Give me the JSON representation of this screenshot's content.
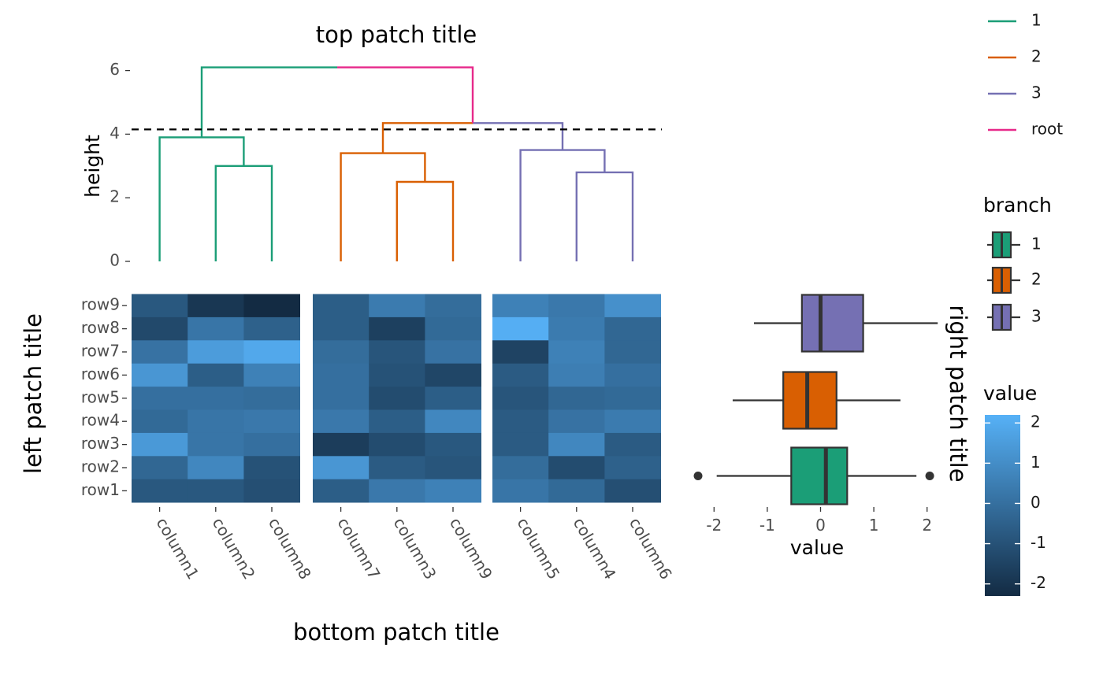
{
  "chart_data": {
    "type": "heatmap",
    "titles": {
      "top": "top patch title",
      "left": "left patch title",
      "bottom": "bottom patch title",
      "right": "right patch title"
    },
    "heatmap": {
      "rows": [
        "row1",
        "row2",
        "row3",
        "row4",
        "row5",
        "row6",
        "row7",
        "row8",
        "row9"
      ],
      "column_groups": [
        [
          "column1",
          "column2",
          "column8"
        ],
        [
          "column7",
          "column3",
          "column9"
        ],
        [
          "column5",
          "column4",
          "column6"
        ]
      ],
      "value_range": [
        -2.3,
        2.2
      ],
      "values_by_row": {
        "row9": [
          -0.8,
          -1.9,
          -2.3,
          -0.6,
          0.4,
          -0.1,
          0.6,
          0.3,
          1.1
        ],
        "row8": [
          -1.3,
          0.2,
          -0.5,
          -0.6,
          -1.6,
          -0.2,
          2.1,
          0.4,
          -0.3
        ],
        "row7": [
          0.1,
          1.5,
          1.9,
          -0.1,
          -0.9,
          0.1,
          -1.5,
          0.6,
          -0.3
        ],
        "row6": [
          1.3,
          -0.6,
          0.6,
          0.0,
          -1.0,
          -1.4,
          -0.7,
          0.5,
          0.0
        ],
        "row5": [
          0.0,
          0.0,
          -0.1,
          0.0,
          -1.2,
          -0.6,
          -0.9,
          -0.3,
          -0.2
        ],
        "row4": [
          -0.2,
          0.2,
          0.3,
          0.3,
          -0.6,
          0.8,
          -0.7,
          0.1,
          0.4
        ],
        "row3": [
          1.4,
          0.2,
          0.0,
          -1.7,
          -1.2,
          -0.8,
          -0.7,
          0.8,
          -0.7
        ],
        "row2": [
          -0.3,
          0.8,
          -1.0,
          1.3,
          -0.7,
          -0.9,
          -0.1,
          -1.2,
          -0.5
        ],
        "row1": [
          -0.8,
          -0.8,
          -1.1,
          -0.6,
          0.3,
          0.6,
          0.2,
          -0.2,
          -1.1
        ]
      }
    },
    "dendrogram": {
      "y_axis_label": "height",
      "y_ticks": [
        0,
        2,
        4,
        6
      ],
      "y_range": [
        0,
        6.1
      ],
      "cut_height": 4.15,
      "leaves": [
        "column1",
        "column2",
        "column8",
        "column7",
        "column3",
        "column9",
        "column5",
        "column4",
        "column6"
      ],
      "merges": [
        {
          "left": "column2",
          "right": "column8",
          "height": 3.0,
          "branch": "1"
        },
        {
          "left": "column1",
          "right": "column2+column8",
          "height": 3.9,
          "branch": "1"
        },
        {
          "left": "column3",
          "right": "column9",
          "height": 2.5,
          "branch": "2"
        },
        {
          "left": "column7",
          "right": "column3+column9",
          "height": 3.4,
          "branch": "2"
        },
        {
          "left": "column4",
          "right": "column6",
          "height": 2.8,
          "branch": "3"
        },
        {
          "left": "column5",
          "right": "column4+column6",
          "height": 3.5,
          "branch": "3"
        },
        {
          "left": "cluster 2",
          "right": "cluster 3",
          "height": 4.35,
          "branch": "2/3"
        },
        {
          "left": "cluster 1",
          "right": "cluster 2+3",
          "height": 6.1,
          "branch": "root"
        }
      ]
    },
    "boxplot": {
      "x_axis_label": "value",
      "x_ticks": [
        -2,
        -1,
        0,
        1,
        2
      ],
      "x_range": [
        -2.4,
        2.2
      ],
      "boxes": [
        {
          "branch": "3",
          "whisker_low": -1.25,
          "q1": -0.35,
          "median": 0.0,
          "q3": 0.8,
          "whisker_high": 2.2,
          "outliers": []
        },
        {
          "branch": "2",
          "whisker_low": -1.65,
          "q1": -0.7,
          "median": -0.25,
          "q3": 0.3,
          "whisker_high": 1.5,
          "outliers": []
        },
        {
          "branch": "1",
          "whisker_low": -1.95,
          "q1": -0.55,
          "median": 0.1,
          "q3": 0.5,
          "whisker_high": 1.8,
          "outliers": [
            -2.3,
            2.05
          ]
        }
      ]
    },
    "legends": {
      "line": {
        "entries": [
          "1",
          "2",
          "3",
          "root"
        ]
      },
      "branch": {
        "title": "branch",
        "entries": [
          "1",
          "2",
          "3"
        ]
      },
      "value": {
        "title": "value",
        "ticks": [
          2,
          1,
          0,
          -1,
          -2
        ],
        "range": [
          -2.3,
          2.2
        ]
      }
    }
  },
  "colors": {
    "branch_1": "#1b9e77",
    "branch_2": "#d95f02",
    "branch_3": "#7570b3",
    "root": "#e7298a",
    "value_low": "#132b43",
    "value_high": "#56b1f7"
  }
}
